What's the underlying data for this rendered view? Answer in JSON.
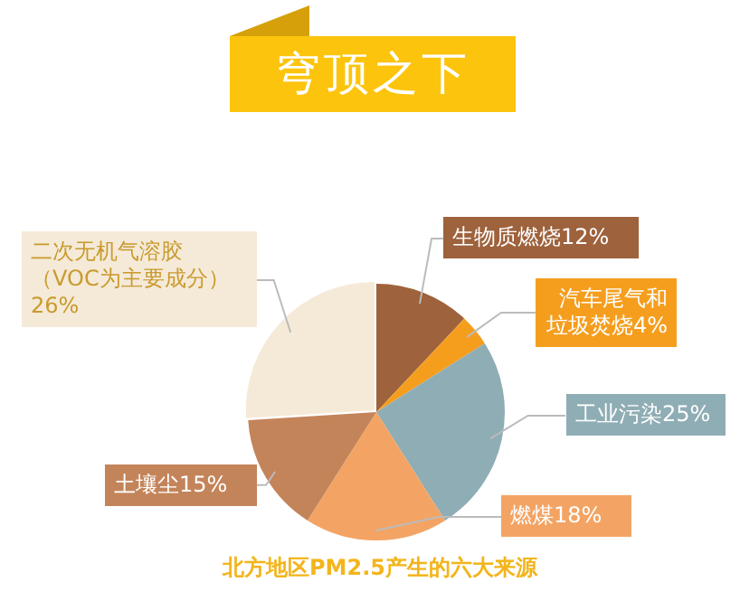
{
  "chart_data": {
    "type": "pie",
    "title": "穹顶之下",
    "categories": [
      "生物质燃烧",
      "汽车尾气和垃圾焚烧",
      "工业污染",
      "燃煤",
      "土壤尘",
      "二次无机气溶胶（VOC为主要成分）"
    ],
    "values": [
      12,
      4,
      25,
      18,
      15,
      26
    ],
    "value_labels": [
      "12%",
      "4%",
      "25%",
      "18%",
      "15%",
      "26%"
    ],
    "colors": [
      "#9e623c",
      "#f59e1e",
      "#8fadb4",
      "#f3a464",
      "#c4845a",
      "#f5ead8"
    ],
    "annotations": [
      "北方地区PM2.5产生的六大来源"
    ]
  }
}
